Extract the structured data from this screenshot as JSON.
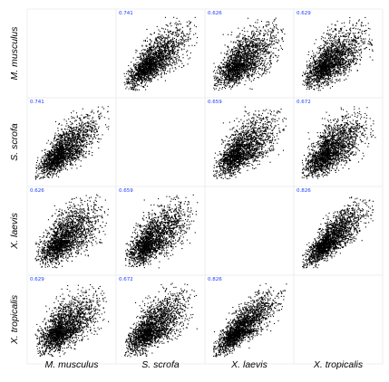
{
  "chart_data": {
    "type": "scatter",
    "variables": [
      "M. musculus",
      "S. scrofa",
      "X. laevis",
      "X. tropicalis"
    ],
    "correlations": [
      [
        null,
        "0.741",
        "0.626",
        "0.629"
      ],
      [
        null,
        null,
        "0.659",
        "0.672"
      ],
      [
        null,
        null,
        null,
        "0.826"
      ],
      [
        null,
        null,
        null,
        null
      ]
    ],
    "points_per_panel": 2200,
    "grid": false,
    "colors": {
      "points": "#000000",
      "correlation_text": "#1a3cff",
      "panel_border": "#ececec"
    }
  }
}
